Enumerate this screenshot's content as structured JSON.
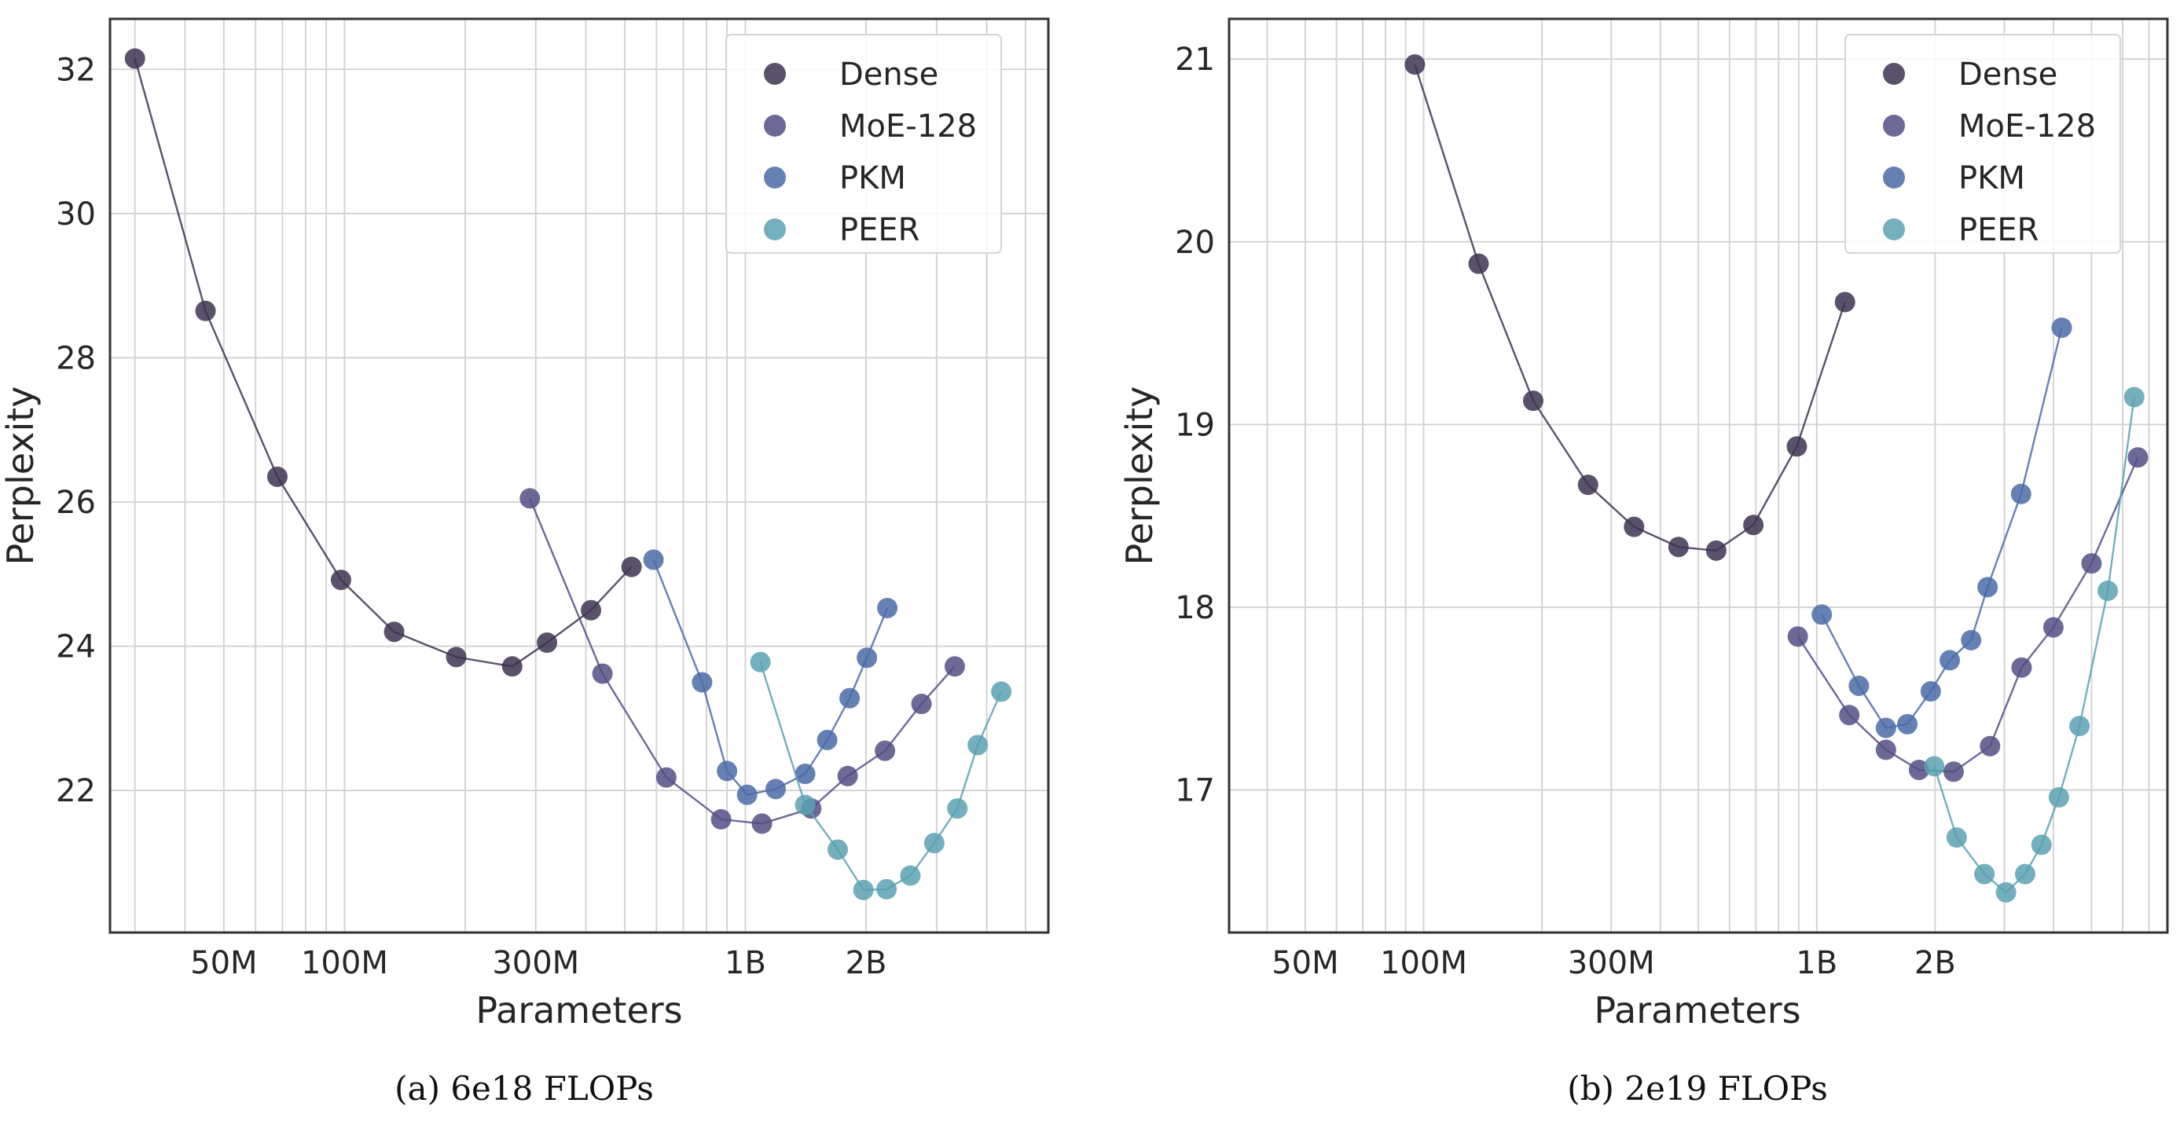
{
  "colors": {
    "Dense": "#3d3450",
    "MoE-128": "#524f85",
    "PKM": "#4a6ba7",
    "PEER": "#5aa1b2",
    "grid": "#d0d0d0",
    "frame": "#333333"
  },
  "chart_data": [
    {
      "type": "line",
      "caption": "(a) 6e18 FLOPs",
      "xlabel": "Parameters",
      "ylabel": "Perplexity",
      "xscale": "log",
      "xlim": [
        26000000,
        5700000000
      ],
      "ylim": [
        20.03,
        32.7
      ],
      "xticks": [
        {
          "value": 50000000,
          "label": "50M"
        },
        {
          "value": 100000000,
          "label": "100M"
        },
        {
          "value": 300000000,
          "label": "300M"
        },
        {
          "value": 1000000000,
          "label": "1B"
        },
        {
          "value": 2000000000,
          "label": "2B"
        }
      ],
      "yticks": [
        {
          "value": 22,
          "label": "22"
        },
        {
          "value": 24,
          "label": "24"
        },
        {
          "value": 26,
          "label": "26"
        },
        {
          "value": 28,
          "label": "28"
        },
        {
          "value": 30,
          "label": "30"
        },
        {
          "value": 32,
          "label": "32"
        }
      ],
      "grid": true,
      "legend_position": "top-right",
      "series": [
        {
          "name": "Dense",
          "points": [
            [
              30000000,
              32.15
            ],
            [
              45000000,
              28.65
            ],
            [
              68000000,
              26.35
            ],
            [
              98000000,
              24.92
            ],
            [
              133000000,
              24.2
            ],
            [
              190000000,
              23.85
            ],
            [
              262000000,
              23.72
            ],
            [
              320000000,
              24.05
            ],
            [
              412000000,
              24.5
            ],
            [
              520000000,
              25.1
            ]
          ]
        },
        {
          "name": "MoE-128",
          "points": [
            [
              290000000,
              26.05
            ],
            [
              440000000,
              23.62
            ],
            [
              635000000,
              22.18
            ],
            [
              870000000,
              21.6
            ],
            [
              1100000000,
              21.54
            ],
            [
              1460000000,
              21.75
            ],
            [
              1800000000,
              22.2
            ],
            [
              2230000000,
              22.55
            ],
            [
              2750000000,
              23.2
            ],
            [
              3330000000,
              23.72
            ]
          ]
        },
        {
          "name": "PKM",
          "points": [
            [
              590000000,
              25.2
            ],
            [
              780000000,
              23.5
            ],
            [
              900000000,
              22.27
            ],
            [
              1010000000,
              21.94
            ],
            [
              1190000000,
              22.02
            ],
            [
              1410000000,
              22.23
            ],
            [
              1600000000,
              22.7
            ],
            [
              1820000000,
              23.28
            ],
            [
              2010000000,
              23.84
            ],
            [
              2260000000,
              24.53
            ]
          ]
        },
        {
          "name": "PEER",
          "points": [
            [
              1090000000,
              23.78
            ],
            [
              1410000000,
              21.8
            ],
            [
              1700000000,
              21.18
            ],
            [
              1970000000,
              20.62
            ],
            [
              2250000000,
              20.63
            ],
            [
              2580000000,
              20.82
            ],
            [
              2960000000,
              21.27
            ],
            [
              3380000000,
              21.75
            ],
            [
              3800000000,
              22.63
            ],
            [
              4350000000,
              23.37
            ]
          ]
        }
      ]
    },
    {
      "type": "line",
      "caption": "(b) 2e19 FLOPs",
      "xlabel": "Parameters",
      "ylabel": "Perplexity",
      "xscale": "log",
      "xlim": [
        32000000,
        7800000000
      ],
      "ylim": [
        16.22,
        21.22
      ],
      "xticks": [
        {
          "value": 50000000,
          "label": "50M"
        },
        {
          "value": 100000000,
          "label": "100M"
        },
        {
          "value": 300000000,
          "label": "300M"
        },
        {
          "value": 1000000000,
          "label": "1B"
        },
        {
          "value": 2000000000,
          "label": "2B"
        }
      ],
      "yticks": [
        {
          "value": 17,
          "label": "17"
        },
        {
          "value": 18,
          "label": "18"
        },
        {
          "value": 19,
          "label": "19"
        },
        {
          "value": 20,
          "label": "20"
        },
        {
          "value": 21,
          "label": "21"
        }
      ],
      "grid": true,
      "legend_position": "top-right",
      "series": [
        {
          "name": "Dense",
          "points": [
            [
              95000000,
              20.97
            ],
            [
              138000000,
              19.88
            ],
            [
              190000000,
              19.13
            ],
            [
              262000000,
              18.67
            ],
            [
              343000000,
              18.44
            ],
            [
              445000000,
              18.33
            ],
            [
              555000000,
              18.31
            ],
            [
              690000000,
              18.45
            ],
            [
              890000000,
              18.88
            ],
            [
              1180000000,
              19.67
            ]
          ]
        },
        {
          "name": "MoE-128",
          "points": [
            [
              895000000,
              17.84
            ],
            [
              1210000000,
              17.41
            ],
            [
              1500000000,
              17.22
            ],
            [
              1820000000,
              17.11
            ],
            [
              2230000000,
              17.1
            ],
            [
              2760000000,
              17.24
            ],
            [
              3320000000,
              17.67
            ],
            [
              4000000000,
              17.89
            ],
            [
              5000000000,
              18.24
            ],
            [
              6560000000,
              18.82
            ]
          ]
        },
        {
          "name": "PKM",
          "points": [
            [
              1030000000,
              17.96
            ],
            [
              1280000000,
              17.57
            ],
            [
              1500000000,
              17.34
            ],
            [
              1700000000,
              17.36
            ],
            [
              1950000000,
              17.54
            ],
            [
              2180000000,
              17.71
            ],
            [
              2470000000,
              17.82
            ],
            [
              2720000000,
              18.11
            ],
            [
              3310000000,
              18.62
            ],
            [
              4200000000,
              19.53
            ]
          ]
        },
        {
          "name": "PEER",
          "points": [
            [
              1990000000,
              17.13
            ],
            [
              2270000000,
              16.74
            ],
            [
              2670000000,
              16.54
            ],
            [
              3030000000,
              16.44
            ],
            [
              3390000000,
              16.54
            ],
            [
              3730000000,
              16.7
            ],
            [
              4130000000,
              16.96
            ],
            [
              4660000000,
              17.35
            ],
            [
              5500000000,
              18.09
            ],
            [
              6420000000,
              19.15
            ]
          ]
        }
      ]
    }
  ]
}
